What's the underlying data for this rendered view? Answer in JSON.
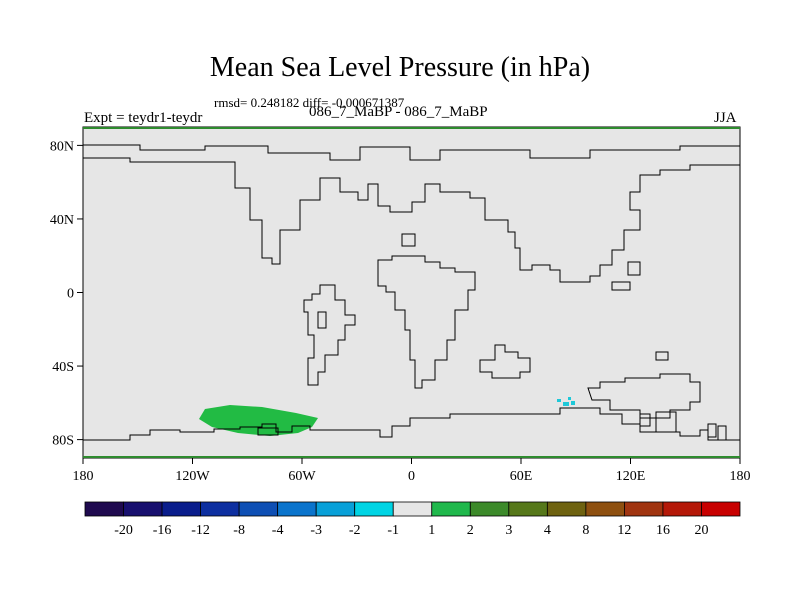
{
  "title": "Mean Sea Level Pressure (in hPa)",
  "stats_line": "rmsd= 0.248182 diff= -0.000671387",
  "experiment_label": "Expt = teydr1-teydr",
  "cases_label": "086_7_MaBP - 086_7_MaBP",
  "season_label": "JJA",
  "colors": {
    "background_field": "#e6e6e6",
    "positive_anomaly": "#22bb44",
    "negative_anomaly": "#1ec8d8",
    "frame_edge": "#2e8b2e"
  },
  "chart_data": {
    "type": "heatmap",
    "projection": "cylindrical-equidistant",
    "x_range": [
      -180,
      180
    ],
    "y_range": [
      -90,
      90
    ],
    "x_ticks": [
      "180",
      "120W",
      "60W",
      "0",
      "60E",
      "120E",
      "180"
    ],
    "y_ticks": [
      "80N",
      "40N",
      "0",
      "40S",
      "80S"
    ],
    "colorbar": {
      "colors": [
        "#1f0a4f",
        "#18106f",
        "#0a1d8c",
        "#0d2fa0",
        "#0e4fb4",
        "#0b74cc",
        "#08a0d8",
        "#00d4e4",
        "#e6e6e6",
        "#20b84c",
        "#3c8a2a",
        "#56781a",
        "#6e6210",
        "#8e5010",
        "#a03410",
        "#b41808",
        "#c80000"
      ],
      "labels": [
        "-20",
        "-16",
        "-12",
        "-8",
        "-4",
        "-3",
        "-2",
        "-1",
        "1",
        "2",
        "3",
        "4",
        "8",
        "12",
        "16",
        "20"
      ]
    },
    "regions": [
      {
        "name": "positive anomaly 1 to 2 hPa",
        "category": "1 to 2",
        "location": "Antarctic coast, about 70S between 118W and 52W"
      },
      {
        "name": "negative anomaly -1 to -2 hPa",
        "category": "-2 to -1",
        "location": "Southern Ocean near 58S, 82E to 92E"
      }
    ]
  }
}
